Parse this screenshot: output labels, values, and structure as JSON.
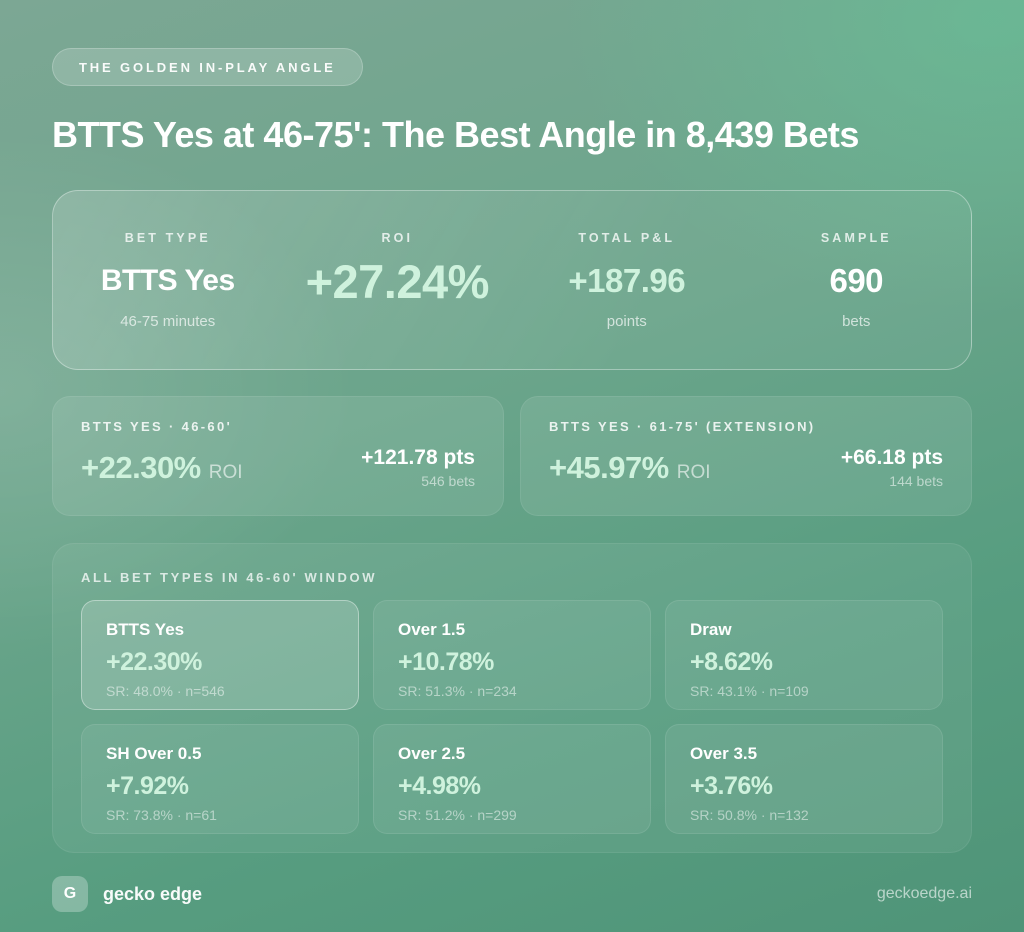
{
  "badge": {
    "label": "THE GOLDEN IN-PLAY ANGLE"
  },
  "title": "BTTS Yes at 46-75': The Best Angle in 8,439 Bets",
  "hero": {
    "stats": [
      {
        "label": "BET TYPE",
        "value": "BTTS Yes",
        "sub": "46-75 minutes"
      },
      {
        "label": "ROI",
        "value": "+27.24%",
        "sub": ""
      },
      {
        "label": "TOTAL P&L",
        "value": "+187.96",
        "sub": "points"
      },
      {
        "label": "SAMPLE",
        "value": "690",
        "sub": "bets"
      }
    ]
  },
  "windows": [
    {
      "header": "BTTS YES · 46-60'",
      "roi": "+22.30%",
      "roi_suffix": "ROI",
      "pts": "+121.78 pts",
      "bets": "546 bets"
    },
    {
      "header": "BTTS YES · 61-75' (EXTENSION)",
      "roi": "+45.97%",
      "roi_suffix": "ROI",
      "pts": "+66.18 pts",
      "bets": "144 bets"
    }
  ],
  "all_bets": {
    "header": "ALL BET TYPES IN 46-60' WINDOW",
    "cells": [
      {
        "name": "BTTS Yes",
        "roi": "+22.30%",
        "detail": "SR: 48.0% · n=546"
      },
      {
        "name": "Over 1.5",
        "roi": "+10.78%",
        "detail": "SR: 51.3% · n=234"
      },
      {
        "name": "Draw",
        "roi": "+8.62%",
        "detail": "SR: 43.1% · n=109"
      },
      {
        "name": "SH Over 0.5",
        "roi": "+7.92%",
        "detail": "SR: 73.8% · n=61"
      },
      {
        "name": "Over 2.5",
        "roi": "+4.98%",
        "detail": "SR: 51.2% · n=299"
      },
      {
        "name": "Over 3.5",
        "roi": "+3.76%",
        "detail": "SR: 50.8% · n=132"
      }
    ]
  },
  "footer": {
    "logo_letter": "G",
    "brand": "gecko edge",
    "site": "geckoedge.ai"
  },
  "colors": {
    "accent_mint": "#cff2dd",
    "bg_green_light": "#7ca794",
    "bg_green_dark": "#4f9478",
    "text_white": "#ffffff"
  },
  "chart_data": {
    "type": "table",
    "title": "BTTS Yes at 46-75': The Best Angle in 8,439 Bets",
    "total_sample_bets": 8439,
    "headline": {
      "bet_type": "BTTS Yes",
      "window": "46-75 minutes",
      "roi_pct": 27.24,
      "total_pnl_points": 187.96,
      "sample_bets": 690
    },
    "windows": [
      {
        "label": "BTTS Yes 46-60'",
        "roi_pct": 22.3,
        "pnl_points": 121.78,
        "bets": 546
      },
      {
        "label": "BTTS Yes 61-75' (extension)",
        "roi_pct": 45.97,
        "pnl_points": 66.18,
        "bets": 144
      }
    ],
    "all_bet_types_46_60_window": [
      {
        "bet_type": "BTTS Yes",
        "roi_pct": 22.3,
        "strike_rate_pct": 48.0,
        "n": 546
      },
      {
        "bet_type": "Over 1.5",
        "roi_pct": 10.78,
        "strike_rate_pct": 51.3,
        "n": 234
      },
      {
        "bet_type": "Draw",
        "roi_pct": 8.62,
        "strike_rate_pct": 43.1,
        "n": 109
      },
      {
        "bet_type": "SH Over 0.5",
        "roi_pct": 7.92,
        "strike_rate_pct": 73.8,
        "n": 61
      },
      {
        "bet_type": "Over 2.5",
        "roi_pct": 4.98,
        "strike_rate_pct": 51.2,
        "n": 299
      },
      {
        "bet_type": "Over 3.5",
        "roi_pct": 3.76,
        "strike_rate_pct": 50.8,
        "n": 132
      }
    ]
  }
}
